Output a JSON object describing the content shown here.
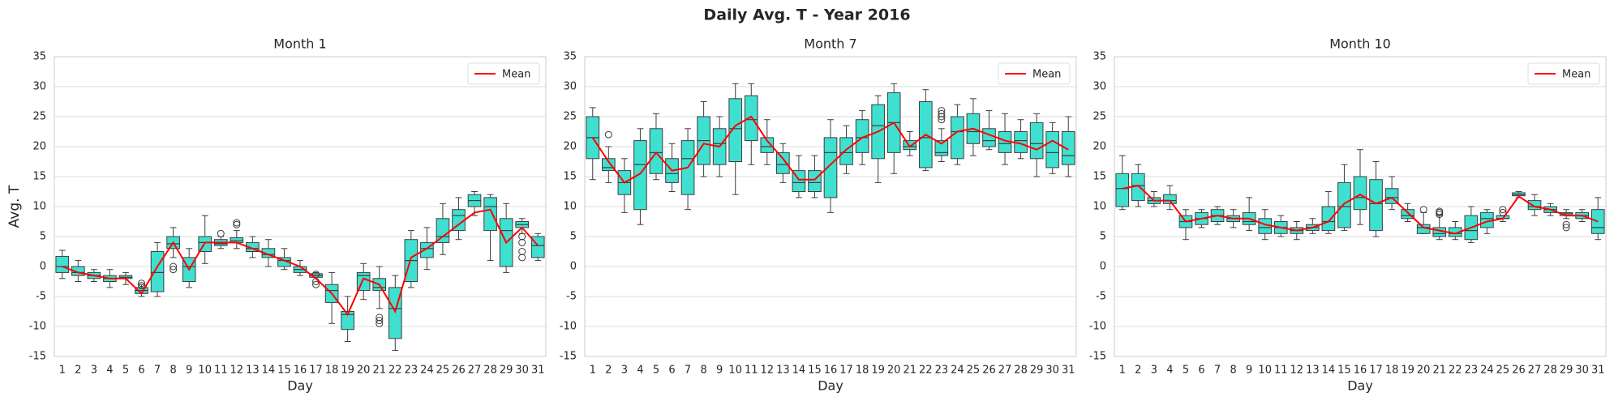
{
  "title": "Daily Avg. T - Year 2016",
  "chart_data": [
    {
      "type": "box",
      "title": "Month 1",
      "xlabel": "Day",
      "ylabel": "Avg. T",
      "categories": [
        "1",
        "2",
        "3",
        "4",
        "5",
        "6",
        "7",
        "8",
        "9",
        "10",
        "11",
        "12",
        "13",
        "14",
        "15",
        "16",
        "17",
        "18",
        "19",
        "20",
        "21",
        "22",
        "23",
        "24",
        "25",
        "26",
        "27",
        "28",
        "29",
        "30",
        "31"
      ],
      "box_color": "#40e0d0",
      "ylim": [
        -15,
        35
      ],
      "yticks": [
        -15,
        -10,
        -5,
        0,
        5,
        10,
        15,
        20,
        25,
        30,
        35
      ],
      "grid": true,
      "legend": "upper right",
      "whislo": [
        -2,
        -2.5,
        -2.5,
        -3.5,
        -3,
        -5,
        -5,
        1.5,
        -3.5,
        0.5,
        3,
        3,
        1.5,
        0,
        -0.5,
        -1.5,
        -1,
        -9.5,
        -12.5,
        -5.5,
        -7,
        -14,
        -3.5,
        -0.5,
        2,
        4.5,
        8.5,
        1,
        -1,
        5.5,
        1
      ],
      "q1": [
        -1,
        -1.5,
        -2,
        -2.5,
        -2,
        -4.5,
        -4.2,
        3,
        -2.5,
        2.5,
        3.5,
        4,
        2.5,
        1.5,
        0,
        -1,
        -1.8,
        -6,
        -10.5,
        -4,
        -4,
        -12,
        -2.5,
        1.5,
        4,
        6,
        10,
        6,
        0,
        6.5,
        1.5
      ],
      "med": [
        0,
        -1,
        -1.5,
        -2,
        -1.8,
        -4,
        -1,
        3.8,
        0,
        4,
        3.8,
        4.3,
        3,
        2,
        1,
        -0.5,
        -1.5,
        -4,
        -8,
        -1.5,
        -3.5,
        -7,
        1,
        3,
        5,
        8.5,
        11,
        10,
        6,
        7,
        3.5
      ],
      "q3": [
        1.7,
        0,
        -1,
        -1.5,
        -1.5,
        -3.5,
        2.5,
        5,
        1.5,
        5,
        4.5,
        4.8,
        4,
        3,
        1.5,
        0,
        -1.2,
        -3,
        -7.5,
        -1,
        -2,
        -3.5,
        4.5,
        4,
        8,
        9.5,
        12,
        11.5,
        8,
        7.5,
        5
      ],
      "whishi": [
        2.7,
        1,
        -0.5,
        -0.5,
        -1,
        -3,
        4,
        6.5,
        3,
        8.5,
        5,
        6,
        5,
        4.5,
        3,
        1,
        -1,
        -1,
        -5,
        0.5,
        0,
        -1.5,
        6,
        6.5,
        10.5,
        11.5,
        12.5,
        12,
        10.5,
        8,
        5.5
      ],
      "fliers": [
        [],
        [],
        [],
        [],
        [],
        [
          -2.8,
          -3.2
        ],
        [],
        [
          0,
          -0.5
        ],
        [],
        [],
        [
          5.5
        ],
        [
          7,
          7.3
        ],
        [],
        [],
        [],
        [],
        [
          -1.3,
          -2.5,
          -3
        ],
        [],
        [],
        [],
        [
          -8.5,
          -9,
          -9.5
        ],
        [],
        [],
        [],
        [],
        [],
        [],
        [],
        [],
        [
          5,
          4,
          2.5,
          1.5
        ],
        []
      ],
      "series": [
        {
          "name": "Mean",
          "color": "#ff0000",
          "values": [
            0,
            -1,
            -1.5,
            -2,
            -2,
            -4.5,
            0,
            4,
            -0.5,
            4,
            4,
            4,
            3,
            2,
            1,
            0,
            -2,
            -4.5,
            -8,
            -2,
            -3,
            -7.5,
            1.5,
            3,
            5,
            7,
            9,
            9.5,
            4,
            6.5,
            3.5
          ]
        }
      ]
    },
    {
      "type": "box",
      "title": "Month 7",
      "xlabel": "Day",
      "categories": [
        "1",
        "2",
        "3",
        "4",
        "5",
        "6",
        "7",
        "8",
        "9",
        "10",
        "11",
        "12",
        "13",
        "14",
        "15",
        "16",
        "17",
        "18",
        "19",
        "20",
        "21",
        "22",
        "23",
        "24",
        "25",
        "26",
        "27",
        "28",
        "29",
        "30",
        "31"
      ],
      "box_color": "#40e0d0",
      "ylim": [
        -15,
        35
      ],
      "yticks": [
        -15,
        -10,
        -5,
        0,
        5,
        10,
        15,
        20,
        25,
        30,
        35
      ],
      "grid": true,
      "legend": "upper right",
      "whislo": [
        14.5,
        14,
        9,
        7,
        14.5,
        12.5,
        9.5,
        15,
        15,
        12,
        17,
        17,
        14,
        11.5,
        11.5,
        9,
        15.5,
        17,
        14,
        15.5,
        18.5,
        16,
        17.5,
        17,
        18.5,
        19.5,
        17,
        18,
        15,
        15.5,
        15
      ],
      "q1": [
        18,
        16,
        12,
        9.5,
        15.5,
        14,
        12,
        17,
        17,
        17.5,
        21,
        19,
        15.5,
        12.5,
        12.5,
        11.5,
        17,
        19,
        18,
        19,
        19.5,
        16.5,
        18.5,
        18,
        20.5,
        20,
        19,
        19,
        18,
        16.5,
        17
      ],
      "med": [
        21.5,
        16.5,
        14,
        17,
        19,
        15.5,
        18,
        21,
        20.5,
        23,
        24.5,
        20,
        17,
        14,
        14,
        19,
        19,
        21.5,
        23.5,
        24,
        20,
        21.5,
        19,
        22.5,
        22.5,
        21,
        20.5,
        21,
        20.5,
        19,
        18.5
      ],
      "q3": [
        25,
        18,
        16,
        21,
        23,
        18,
        21,
        25,
        23,
        28,
        28.5,
        21.5,
        19,
        16,
        16,
        21.5,
        21.5,
        24.5,
        27,
        29,
        21,
        27.5,
        21,
        25,
        25.5,
        23,
        22.5,
        22.5,
        24,
        22.5,
        22.5
      ],
      "whishi": [
        26.5,
        20,
        18,
        23,
        25.5,
        20.5,
        23,
        27.5,
        25,
        30.5,
        30.5,
        24.5,
        20.5,
        18.5,
        18.5,
        24.5,
        23.5,
        26,
        28.5,
        30.5,
        22.5,
        29.5,
        23,
        27,
        28,
        26,
        25.5,
        24.5,
        25.5,
        24,
        25
      ],
      "fliers": [
        [],
        [
          22
        ],
        [],
        [],
        [],
        [],
        [],
        [],
        [],
        [],
        [],
        [],
        [],
        [],
        [],
        [],
        [],
        [],
        [],
        [],
        [],
        [],
        [
          24.5,
          25,
          25.5,
          26
        ],
        [],
        [],
        [],
        [],
        [],
        [],
        [],
        []
      ],
      "series": [
        {
          "name": "Mean",
          "color": "#ff0000",
          "values": [
            21.5,
            17.5,
            14,
            15.5,
            19,
            16,
            16.5,
            20.5,
            20,
            23.5,
            25,
            21,
            18,
            14.5,
            14.5,
            17,
            19.5,
            21.5,
            22.5,
            24,
            20,
            22,
            20.5,
            22.5,
            23,
            22,
            21,
            20.5,
            19.5,
            21,
            19.5
          ]
        }
      ]
    },
    {
      "type": "box",
      "title": "Month 10",
      "xlabel": "Day",
      "categories": [
        "1",
        "2",
        "3",
        "4",
        "5",
        "6",
        "7",
        "8",
        "9",
        "10",
        "11",
        "12",
        "13",
        "14",
        "15",
        "16",
        "17",
        "18",
        "19",
        "20",
        "21",
        "22",
        "23",
        "24",
        "25",
        "26",
        "27",
        "28",
        "29",
        "30",
        "31"
      ],
      "box_color": "#40e0d0",
      "ylim": [
        -15,
        35
      ],
      "yticks": [
        -15,
        -10,
        -5,
        0,
        5,
        10,
        15,
        20,
        25,
        30,
        35
      ],
      "grid": true,
      "legend": "upper right",
      "whislo": [
        9.5,
        10,
        10,
        9.5,
        4.5,
        6.5,
        7,
        6.5,
        6,
        4.5,
        5,
        4.5,
        5.5,
        5.5,
        6,
        7,
        5,
        9.5,
        7.5,
        5.5,
        4.5,
        4.5,
        4,
        5.5,
        7.5,
        11.5,
        8.5,
        8.5,
        8,
        7.5,
        4.5
      ],
      "q1": [
        10,
        11,
        10.5,
        10.5,
        6.5,
        7,
        7.5,
        7.5,
        7,
        5.5,
        5.5,
        5.5,
        6,
        6,
        6.5,
        9.5,
        6,
        10.5,
        8,
        5.5,
        5,
        5,
        4.5,
        6.5,
        8,
        11.8,
        9.5,
        9,
        8.5,
        8,
        5.5
      ],
      "med": [
        13,
        13.5,
        11,
        11,
        7.5,
        8,
        8.5,
        8,
        7.5,
        6.5,
        6.5,
        6,
        6.5,
        7.5,
        10,
        11.5,
        10.5,
        11.5,
        8.5,
        6.5,
        5.5,
        5.5,
        6,
        8,
        8,
        12,
        10,
        9.5,
        8.8,
        8.5,
        6.5
      ],
      "q3": [
        15.5,
        15.5,
        11.5,
        12,
        8.5,
        9,
        9.5,
        8.5,
        9,
        8,
        7.5,
        6.5,
        7,
        10,
        14,
        15,
        14.5,
        13,
        9.5,
        7,
        6.5,
        6.5,
        8.5,
        9,
        8.5,
        12.3,
        11,
        10,
        9,
        9,
        9.5
      ],
      "whishi": [
        18.5,
        17,
        12.5,
        13.5,
        9.5,
        9.5,
        10,
        9.5,
        11.5,
        9.5,
        8.5,
        7.5,
        8,
        12.5,
        17,
        19.5,
        17.5,
        15,
        10.5,
        9,
        8.5,
        7.5,
        10,
        9.5,
        8.5,
        12.5,
        12,
        10.5,
        9.5,
        9.5,
        11.5
      ],
      "fliers": [
        [],
        [],
        [],
        [],
        [],
        [],
        [],
        [],
        [],
        [],
        [],
        [],
        [],
        [],
        [],
        [],
        [],
        [],
        [],
        [
          9.5
        ],
        [
          8.7,
          9,
          9.2
        ],
        [],
        [],
        [],
        [
          9,
          9.5
        ],
        [],
        [],
        [],
        [
          7,
          6.5
        ],
        [],
        []
      ],
      "series": [
        {
          "name": "Mean",
          "color": "#ff0000",
          "values": [
            13,
            13.5,
            11,
            11,
            7.5,
            8,
            8.5,
            8,
            8,
            7,
            6.5,
            6,
            6.5,
            7.5,
            10.5,
            12,
            10.5,
            11.5,
            9,
            6.5,
            6,
            5.5,
            6.5,
            7.5,
            8,
            11.7,
            10,
            9.5,
            8.5,
            8.5,
            7.5
          ]
        }
      ]
    }
  ]
}
